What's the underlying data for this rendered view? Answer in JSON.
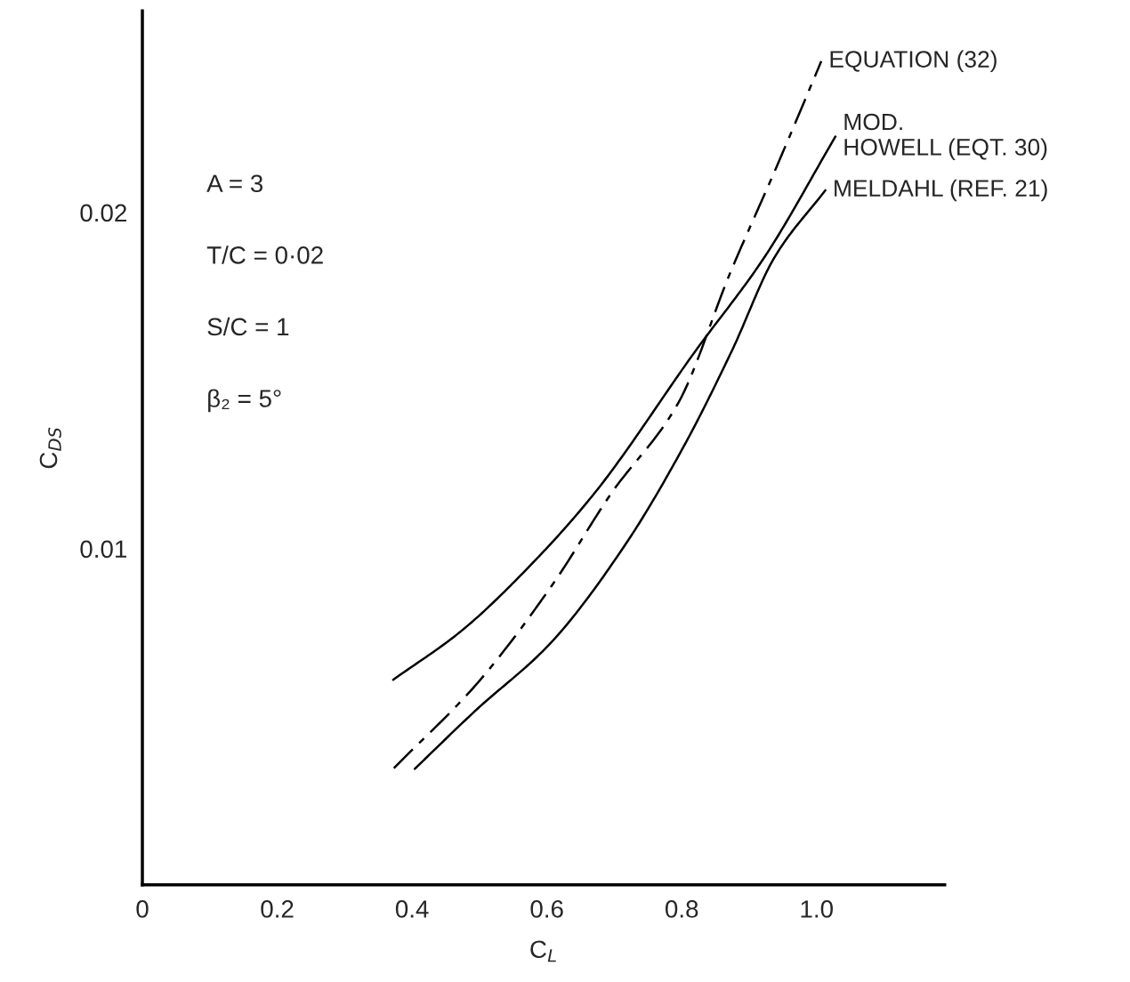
{
  "chart_data": {
    "type": "line",
    "xlabel": "C$_{L}$",
    "ylabel": "C$_{DS}$",
    "xlim": [
      0,
      1.19
    ],
    "ylim": [
      0,
      0.026
    ],
    "xticks": [
      0,
      0.2,
      0.4,
      0.6,
      0.8,
      {
        "value": 1.0,
        "label": "1.0"
      }
    ],
    "yticks": [
      0.01,
      0.02
    ],
    "grid": false,
    "legend": false,
    "marker": "none",
    "annotations": [
      "A = 3",
      "T/C = 0·02",
      "S/C = 1",
      "β₂ = 5°"
    ],
    "series": [
      {
        "name": "EQUATION (32)",
        "color": "#000000",
        "line_style": "dashed",
        "x": [
          0.373,
          0.497,
          0.609,
          0.695,
          0.795,
          0.872,
          0.942,
          1.007
        ],
        "values": [
          0.00347,
          0.006,
          0.00895,
          0.01163,
          0.01434,
          0.01821,
          0.02142,
          0.0245
        ]
      },
      {
        "name": "MOD.\nHOWELL (EQT. 30)",
        "color": "#000000",
        "line_style": "solid",
        "x": [
          0.372,
          0.473,
          0.583,
          0.671,
          0.82,
          0.923,
          1.028
        ],
        "values": [
          0.0061,
          0.00755,
          0.00966,
          0.01166,
          0.01587,
          0.01868,
          0.02226
        ]
      },
      {
        "name": "MELDAHL (REF. 21)",
        "color": "#000000",
        "line_style": "solid",
        "x": [
          0.404,
          0.494,
          0.605,
          0.715,
          0.804,
          0.874,
          0.938,
          1.013
        ],
        "values": [
          0.00345,
          0.00518,
          0.00718,
          0.01008,
          0.01308,
          0.01587,
          0.01868,
          0.02066
        ]
      }
    ]
  }
}
